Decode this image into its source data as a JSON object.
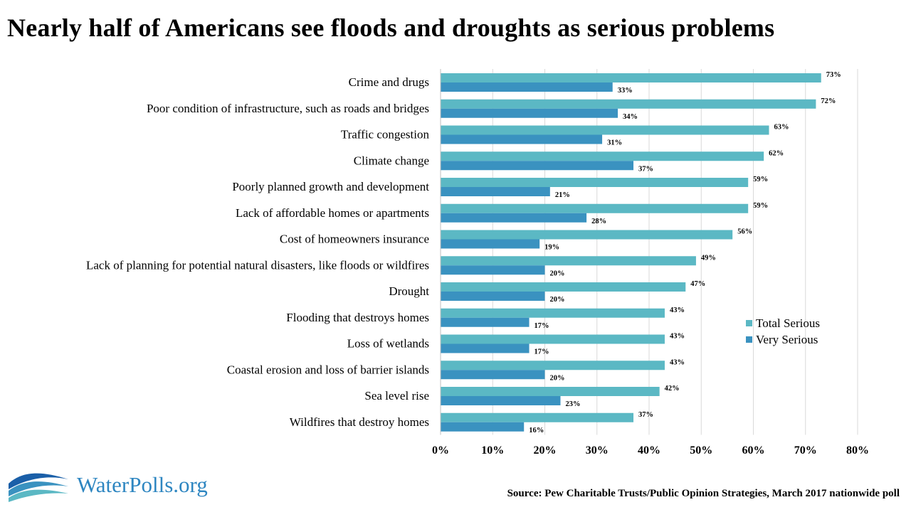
{
  "title": "Nearly half of Americans see floods and droughts as serious problems",
  "logo": {
    "text": "WaterPolls.org",
    "icon": "water-waves-icon"
  },
  "source": "Source: Pew Charitable Trusts/Public Opinion Strategies, March 2017 nationwide poll",
  "colors": {
    "total": "#5bb8c4",
    "very": "#3a92c0",
    "grid": "#d9d9d9"
  },
  "chart_data": {
    "type": "bar",
    "orientation": "horizontal",
    "categories": [
      "Crime and drugs",
      "Poor condition of infrastructure, such as roads and bridges",
      "Traffic congestion",
      "Climate change",
      "Poorly planned growth and development",
      "Lack of affordable homes or apartments",
      "Cost of homeowners insurance",
      "Lack of planning for potential natural disasters, like floods or wildfires",
      "Drought",
      "Flooding that destroys homes",
      "Loss of wetlands",
      "Coastal erosion and loss of barrier islands",
      "Sea level rise",
      "Wildfires that destroy homes"
    ],
    "series": [
      {
        "name": "Total Serious",
        "values": [
          73,
          72,
          63,
          62,
          59,
          59,
          56,
          49,
          47,
          43,
          43,
          43,
          42,
          37
        ],
        "color": "#5bb8c4"
      },
      {
        "name": "Very Serious",
        "values": [
          33,
          34,
          31,
          37,
          21,
          28,
          19,
          20,
          20,
          17,
          17,
          20,
          23,
          16
        ],
        "color": "#3a92c0"
      }
    ],
    "value_suffix": "%",
    "xlim": [
      0,
      80
    ],
    "xticks": [
      "0%",
      "10%",
      "20%",
      "30%",
      "40%",
      "50%",
      "60%",
      "70%",
      "80%"
    ],
    "grid": true,
    "legend": "right"
  }
}
